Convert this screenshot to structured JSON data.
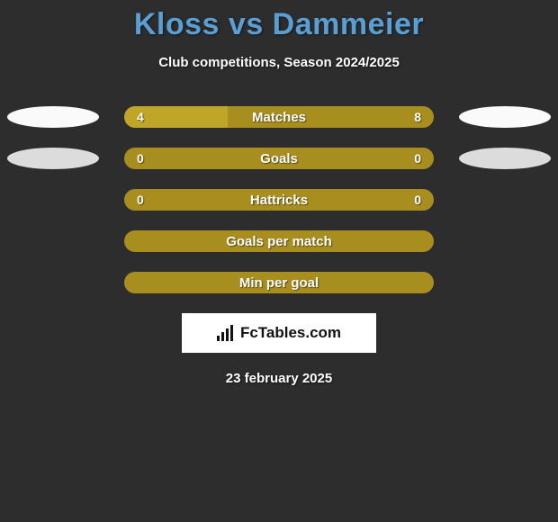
{
  "title": "Kloss vs Dammeier",
  "subtitle": "Club competitions, Season 2024/2025",
  "date": "23 february 2025",
  "logo_text": "FcTables.com",
  "colors": {
    "background": "#2d2d2d",
    "title": "#5a9fd4",
    "text": "#ffffff",
    "ellipse_left_light": "#fafafa",
    "ellipse_left_gray": "#dcdcdc",
    "ellipse_right_light": "#fafafa",
    "ellipse_right_gray": "#dcdcdc",
    "bar_base": "#a88e1f",
    "bar_accent": "#bfa528"
  },
  "rows": [
    {
      "label": "Matches",
      "left_value": "4",
      "right_value": "8",
      "show_values": true,
      "left_ellipse_color": "#fafafa",
      "right_ellipse_color": "#fafafa",
      "bar_bg": "#a88e1f",
      "fills": [
        {
          "side": "left",
          "width_pct": 33.3,
          "color": "#bfa528"
        }
      ]
    },
    {
      "label": "Goals",
      "left_value": "0",
      "right_value": "0",
      "show_values": true,
      "left_ellipse_color": "#dcdcdc",
      "right_ellipse_color": "#dcdcdc",
      "bar_bg": "#a88e1f",
      "fills": []
    },
    {
      "label": "Hattricks",
      "left_value": "0",
      "right_value": "0",
      "show_values": true,
      "left_ellipse_color": null,
      "right_ellipse_color": null,
      "bar_bg": "#a88e1f",
      "fills": []
    },
    {
      "label": "Goals per match",
      "left_value": "",
      "right_value": "",
      "show_values": false,
      "left_ellipse_color": null,
      "right_ellipse_color": null,
      "bar_bg": "#a88e1f",
      "fills": []
    },
    {
      "label": "Min per goal",
      "left_value": "",
      "right_value": "",
      "show_values": false,
      "left_ellipse_color": null,
      "right_ellipse_color": null,
      "bar_bg": "#a88e1f",
      "fills": []
    }
  ]
}
